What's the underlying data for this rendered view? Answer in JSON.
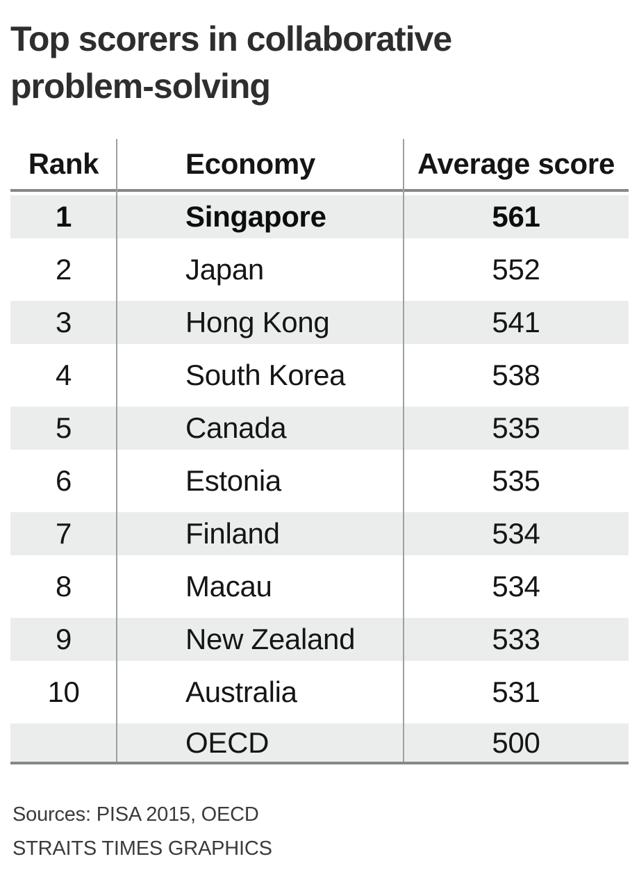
{
  "title": "Top scorers in collaborative problem-solving",
  "table": {
    "headers": {
      "rank": "Rank",
      "economy": "Economy",
      "score": "Average score"
    },
    "rows": [
      {
        "rank": "1",
        "economy": "Singapore",
        "score": "561",
        "bold": true
      },
      {
        "rank": "2",
        "economy": "Japan",
        "score": "552",
        "bold": false
      },
      {
        "rank": "3",
        "economy": "Hong Kong",
        "score": "541",
        "bold": false
      },
      {
        "rank": "4",
        "economy": "South Korea",
        "score": "538",
        "bold": false
      },
      {
        "rank": "5",
        "economy": "Canada",
        "score": "535",
        "bold": false
      },
      {
        "rank": "6",
        "economy": "Estonia",
        "score": "535",
        "bold": false
      },
      {
        "rank": "7",
        "economy": "Finland",
        "score": "534",
        "bold": false
      },
      {
        "rank": "8",
        "economy": "Macau",
        "score": "534",
        "bold": false
      },
      {
        "rank": "9",
        "economy": "New Zealand",
        "score": "533",
        "bold": false
      },
      {
        "rank": "10",
        "economy": "Australia",
        "score": "531",
        "bold": false
      },
      {
        "rank": "",
        "economy": "OECD",
        "score": "500",
        "bold": false
      }
    ]
  },
  "footer": {
    "sources": "Sources: PISA 2015, OECD",
    "credit": "STRAITS TIMES GRAPHICS"
  },
  "colors": {
    "band": "#eaedec",
    "rule": "#84888a",
    "divider": "#9ca0a2",
    "title_text": "#2e2e2e",
    "body_text": "#151515"
  }
}
